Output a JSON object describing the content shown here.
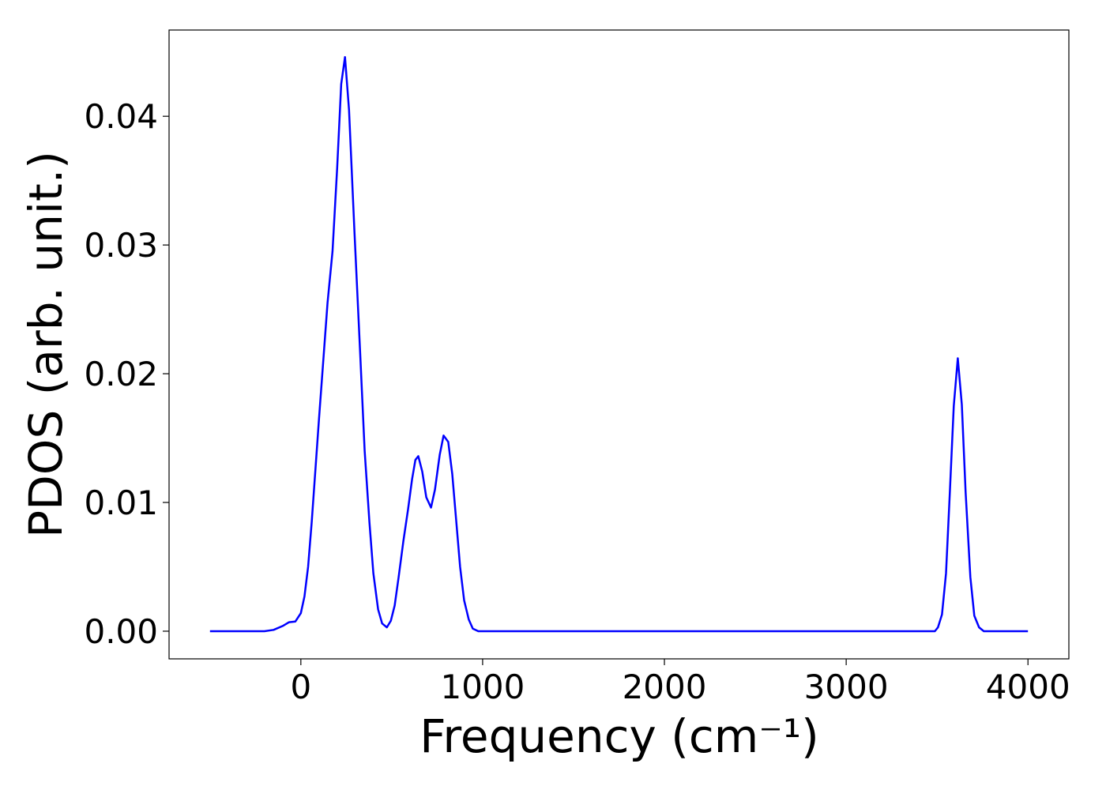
{
  "chart_data": {
    "type": "line",
    "xlabel": "Frequency (cm⁻¹)",
    "ylabel": "PDOS (arb. unit.)",
    "x": [
      -500,
      -200,
      -150,
      -100,
      -65,
      -30,
      0,
      20,
      40,
      60,
      80,
      100,
      126,
      147,
      174,
      200,
      222,
      243,
      265,
      295,
      325,
      351,
      377,
      399,
      425,
      447,
      473,
      495,
      516,
      538,
      564,
      590,
      612,
      630,
      646,
      668,
      690,
      716,
      738,
      764,
      785,
      811,
      833,
      855,
      876,
      898,
      924,
      946,
      976,
      3488,
      3505,
      3527,
      3549,
      3571,
      3592,
      3614,
      3636,
      3657,
      3683,
      3705,
      3731,
      3757,
      4000
    ],
    "series": [
      {
        "name": "PDOS",
        "color": "#0000ff",
        "values": [
          0,
          0,
          0.0001,
          0.0004,
          0.0007,
          0.00075,
          0.0014,
          0.0027,
          0.005,
          0.0085,
          0.0125,
          0.0165,
          0.0215,
          0.0255,
          0.0295,
          0.036,
          0.0425,
          0.0446,
          0.0405,
          0.031,
          0.022,
          0.014,
          0.0085,
          0.0045,
          0.0017,
          0.0006,
          0.0003,
          0.0008,
          0.002,
          0.0042,
          0.007,
          0.0095,
          0.0118,
          0.0133,
          0.0136,
          0.0124,
          0.0104,
          0.0096,
          0.011,
          0.0137,
          0.0152,
          0.0147,
          0.0122,
          0.0085,
          0.005,
          0.0024,
          0.0009,
          0.0002,
          0,
          0,
          0.0003,
          0.0013,
          0.0045,
          0.011,
          0.0175,
          0.0212,
          0.0176,
          0.0108,
          0.0042,
          0.0012,
          0.0003,
          0,
          0
        ]
      }
    ],
    "xlim": [
      -725,
      4225
    ],
    "ylim": [
      -0.00215,
      0.0467
    ],
    "xticks": [
      0,
      1000,
      2000,
      3000,
      4000
    ],
    "yticks": [
      {
        "value": 0,
        "label": "0.00"
      },
      {
        "value": 0.01,
        "label": "0.01"
      },
      {
        "value": 0.02,
        "label": "0.02"
      },
      {
        "value": 0.03,
        "label": "0.03"
      },
      {
        "value": 0.04,
        "label": "0.04"
      }
    ]
  }
}
